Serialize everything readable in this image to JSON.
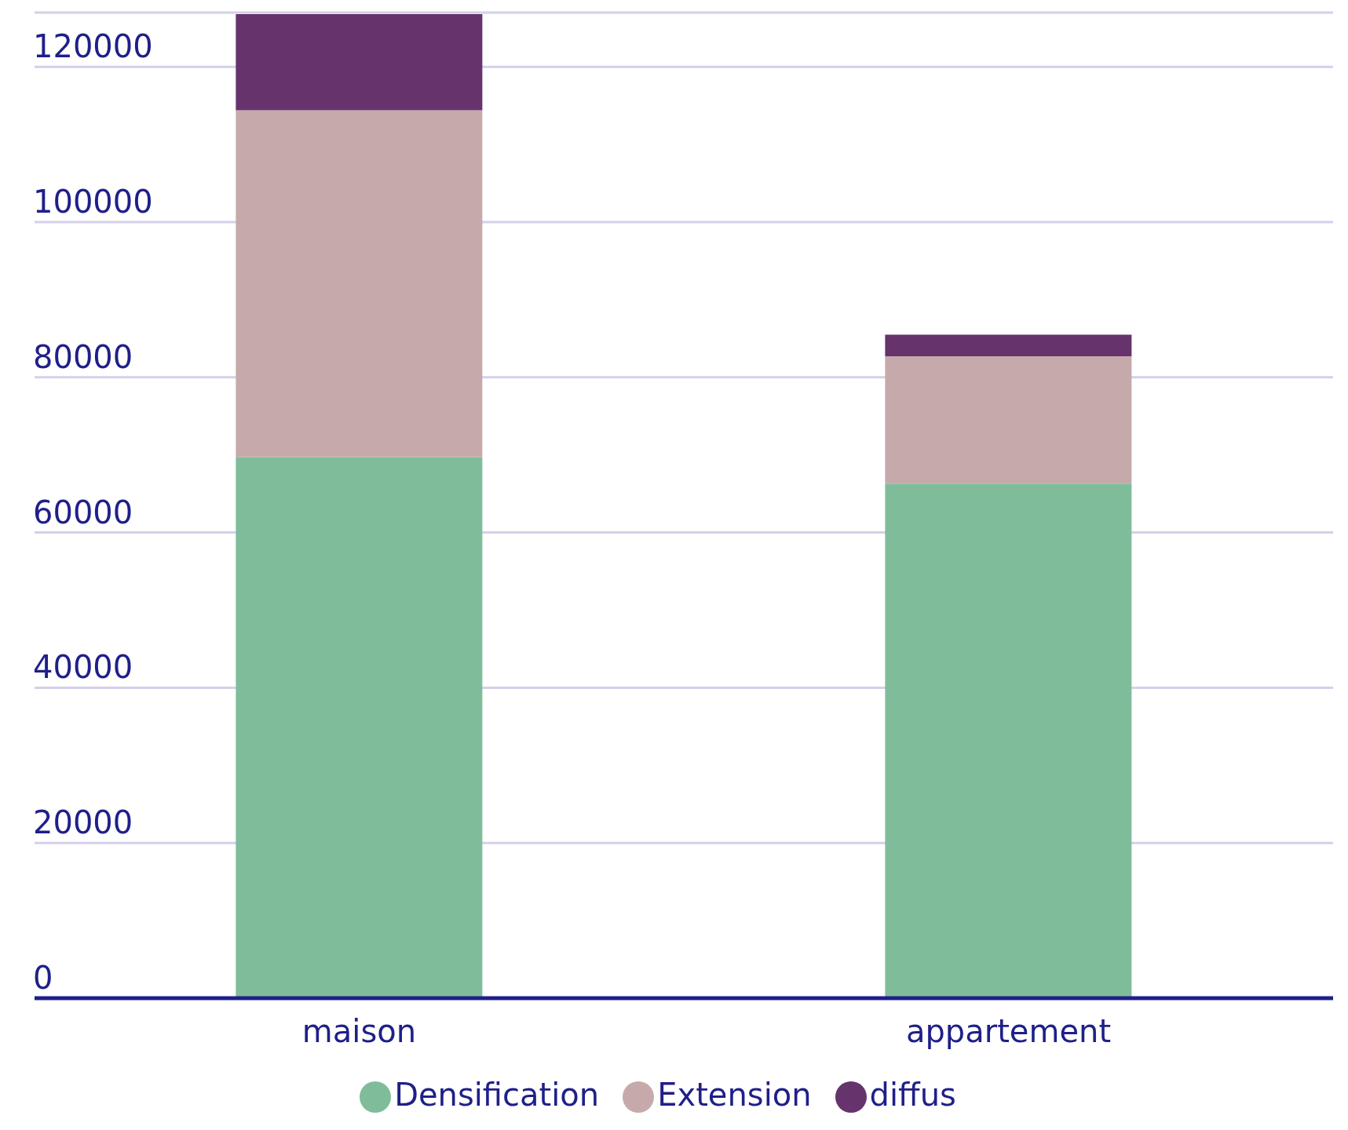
{
  "chart_data": {
    "type": "bar",
    "stacked": true,
    "categories": [
      "maison",
      "appartement"
    ],
    "series": [
      {
        "name": "Densification",
        "color": "#7fbd9a",
        "values": [
          69700,
          66300
        ]
      },
      {
        "name": "Extension",
        "color": "#c6aaab",
        "values": [
          44700,
          16400
        ]
      },
      {
        "name": "diffus",
        "color": "#66336d",
        "values": [
          12400,
          2800
        ]
      }
    ],
    "ylim": [
      0,
      127000
    ],
    "yticks": [
      0,
      20000,
      40000,
      60000,
      80000,
      100000,
      120000
    ],
    "grid": "y",
    "legend": "bottom"
  }
}
